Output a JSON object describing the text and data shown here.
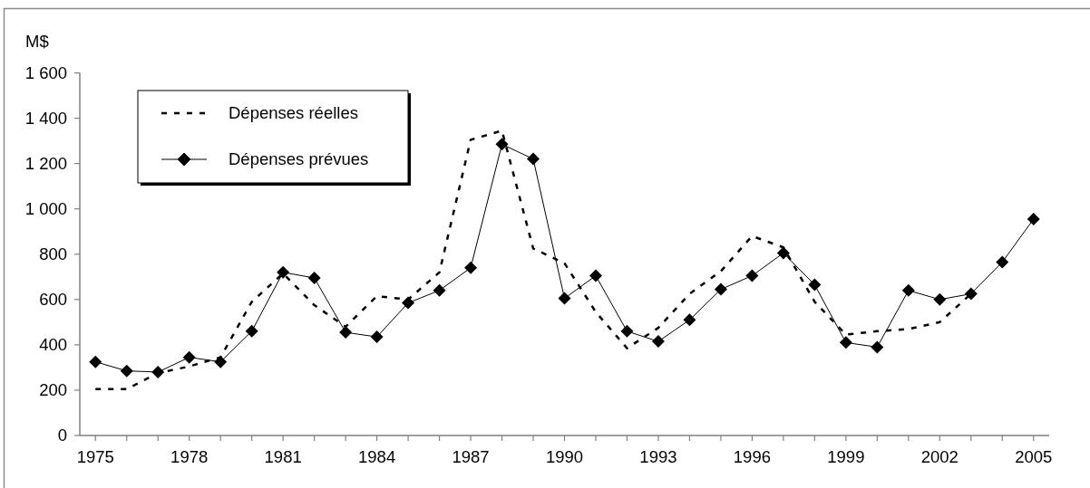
{
  "chart_data": {
    "type": "line",
    "ylabel": "M$",
    "x": [
      1975,
      1976,
      1977,
      1978,
      1979,
      1980,
      1981,
      1982,
      1983,
      1984,
      1985,
      1986,
      1987,
      1988,
      1989,
      1990,
      1991,
      1992,
      1993,
      1994,
      1995,
      1996,
      1997,
      1998,
      1999,
      2000,
      2001,
      2002,
      2003,
      2004,
      2005
    ],
    "series": [
      {
        "name": "Dépenses réelles",
        "color": "#000000",
        "line_style": "dashed",
        "marker": "none",
        "values": [
          205,
          205,
          275,
          305,
          345,
          590,
          715,
          575,
          480,
          615,
          600,
          720,
          1305,
          1345,
          825,
          760,
          545,
          385,
          475,
          625,
          725,
          880,
          830,
          590,
          445,
          460,
          470,
          500,
          625,
          null,
          null
        ]
      },
      {
        "name": "Dépenses prévues",
        "color": "#000000",
        "line_style": "solid",
        "marker": "diamond",
        "values": [
          325,
          285,
          280,
          345,
          325,
          460,
          720,
          695,
          455,
          435,
          585,
          640,
          740,
          1285,
          1220,
          605,
          705,
          460,
          415,
          510,
          645,
          705,
          805,
          665,
          410,
          390,
          640,
          600,
          625,
          765,
          955
        ]
      }
    ],
    "xlim": [
      1974.5,
      2005.5
    ],
    "ylim": [
      0,
      1600
    ],
    "xticks": [
      1975,
      {
        "value": 1976,
        "label": null
      },
      {
        "value": 1977,
        "label": null
      },
      1978,
      {
        "value": 1979,
        "label": null
      },
      {
        "value": 1980,
        "label": null
      },
      1981,
      {
        "value": 1982,
        "label": null
      },
      {
        "value": 1983,
        "label": null
      },
      1984,
      {
        "value": 1985,
        "label": null
      },
      {
        "value": 1986,
        "label": null
      },
      1987,
      {
        "value": 1988,
        "label": null
      },
      {
        "value": 1989,
        "label": null
      },
      1990,
      {
        "value": 1991,
        "label": null
      },
      {
        "value": 1992,
        "label": null
      },
      1993,
      {
        "value": 1994,
        "label": null
      },
      {
        "value": 1995,
        "label": null
      },
      1996,
      {
        "value": 1997,
        "label": null
      },
      {
        "value": 1998,
        "label": null
      },
      1999,
      {
        "value": 2000,
        "label": null
      },
      {
        "value": 2001,
        "label": null
      },
      2002,
      {
        "value": 2003,
        "label": null
      },
      {
        "value": 2004,
        "label": null
      },
      2005
    ],
    "yticks": [
      0,
      200,
      400,
      600,
      800,
      {
        "value": 1000,
        "label": "1 000"
      },
      {
        "value": 1200,
        "label": "1 200"
      },
      {
        "value": 1400,
        "label": "1 400"
      },
      {
        "value": 1600,
        "label": "1 600"
      }
    ],
    "legend": "top left"
  }
}
